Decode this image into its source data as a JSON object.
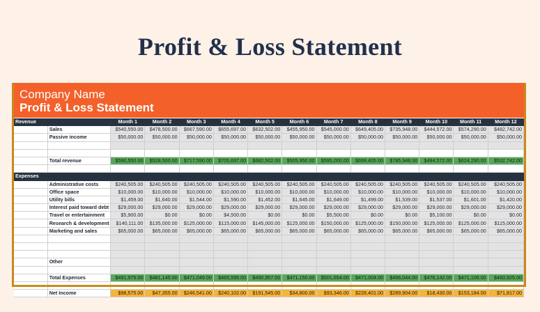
{
  "page_title": "Profit & Loss Statement",
  "sheet": {
    "company_name": "Company Name",
    "title": "Profit & Loss Statement"
  },
  "months": [
    "Month 1",
    "Month 2",
    "Month 3",
    "Month 4",
    "Month 5",
    "Month 6",
    "Month 7",
    "Month 8",
    "Month 9",
    "Month 10",
    "Month 11",
    "Month 12"
  ],
  "revenue": {
    "section_label": "Revenue",
    "rows": [
      {
        "label": "Sales",
        "values": [
          "$540,550.00",
          "$478,500.00",
          "$667,590.00",
          "$655,697.00",
          "$632,502.00",
          "$455,950.00",
          "$545,000.00",
          "$649,405.00",
          "$735,948.00",
          "$444,572.00",
          "$574,290.00",
          "$482,742.00"
        ]
      },
      {
        "label": "Passive income",
        "values": [
          "$50,000.00",
          "$50,000.00",
          "$50,000.00",
          "$50,000.00",
          "$50,000.00",
          "$50,000.00",
          "$50,000.00",
          "$50,000.00",
          "$50,000.00",
          "$50,000.00",
          "$50,000.00",
          "$50,000.00"
        ]
      }
    ],
    "total": {
      "label": "Total revenue",
      "values": [
        "$590,550.00",
        "$528,500.00",
        "$717,590.00",
        "$705,697.00",
        "$682,502.00",
        "$505,950.00",
        "$595,000.00",
        "$699,405.00",
        "$785,948.00",
        "$494,572.00",
        "$624,290.00",
        "$532,742.00"
      ]
    }
  },
  "expenses": {
    "section_label": "Expenses",
    "rows": [
      {
        "label": "Administrative costs",
        "values": [
          "$240,505.00",
          "$240,505.00",
          "$240,505.00",
          "$240,505.00",
          "$240,505.00",
          "$240,505.00",
          "$240,505.00",
          "$240,505.00",
          "$240,505.00",
          "$240,505.00",
          "$240,505.00",
          "$240,505.00"
        ]
      },
      {
        "label": "Office space",
        "values": [
          "$10,000.00",
          "$10,000.00",
          "$10,000.00",
          "$10,000.00",
          "$10,000.00",
          "$10,000.00",
          "$10,000.00",
          "$10,000.00",
          "$10,000.00",
          "$10,000.00",
          "$10,000.00",
          "$10,000.00"
        ]
      },
      {
        "label": "Utility bills",
        "values": [
          "$1,459.00",
          "$1,640.00",
          "$1,544.00",
          "$1,590.00",
          "$1,452.00",
          "$1,645.00",
          "$1,649.00",
          "$1,499.00",
          "$1,539.00",
          "$1,537.00",
          "$1,601.00",
          "$1,420.00"
        ]
      },
      {
        "label": "Interest paid toward debt",
        "values": [
          "$29,000.00",
          "$29,000.00",
          "$29,000.00",
          "$29,000.00",
          "$29,000.00",
          "$29,000.00",
          "$29,000.00",
          "$29,000.00",
          "$29,000.00",
          "$29,000.00",
          "$29,000.00",
          "$29,000.00"
        ]
      },
      {
        "label": "Travel or entertainment",
        "values": [
          "$5,900.00",
          "$0.00",
          "$0.00",
          "$4,500.00",
          "$0.00",
          "$0.00",
          "$5,500.00",
          "$0.00",
          "$0.00",
          "$5,100.00",
          "$0.00",
          "$0.00"
        ]
      },
      {
        "label": "Research & development",
        "values": [
          "$140,111.00",
          "$135,000.00",
          "$125,000.00",
          "$115,000.00",
          "$145,000.00",
          "$125,000.00",
          "$150,000.00",
          "$125,000.00",
          "$150,000.00",
          "$125,000.00",
          "$125,000.00",
          "$115,000.00"
        ]
      },
      {
        "label": "Marketing and sales",
        "values": [
          "$65,000.00",
          "$65,000.00",
          "$65,000.00",
          "$65,000.00",
          "$65,000.00",
          "$65,000.00",
          "$65,000.00",
          "$65,000.00",
          "$65,000.00",
          "$65,000.00",
          "$65,000.00",
          "$65,000.00"
        ]
      }
    ],
    "other_label": "Other",
    "total": {
      "label": "Total Expenses",
      "values": [
        "$491,975.00",
        "$481,145.00",
        "$471,049.00",
        "$465,595.00",
        "$490,957.00",
        "$471,150.00",
        "$501,654.00",
        "$471,004.00",
        "$496,044.00",
        "$476,142.00",
        "$471,106.00",
        "$460,925.00"
      ]
    }
  },
  "net_income": {
    "label": "Net Income",
    "values": [
      "$98,575.00",
      "$47,355.00",
      "$246,541.00",
      "$240,102.00",
      "$191,545.00",
      "$34,800.00",
      "$93,346.00",
      "$228,401.00",
      "$289,904.00",
      "$18,430.00",
      "$153,184.00",
      "$71,817.00"
    ]
  }
}
